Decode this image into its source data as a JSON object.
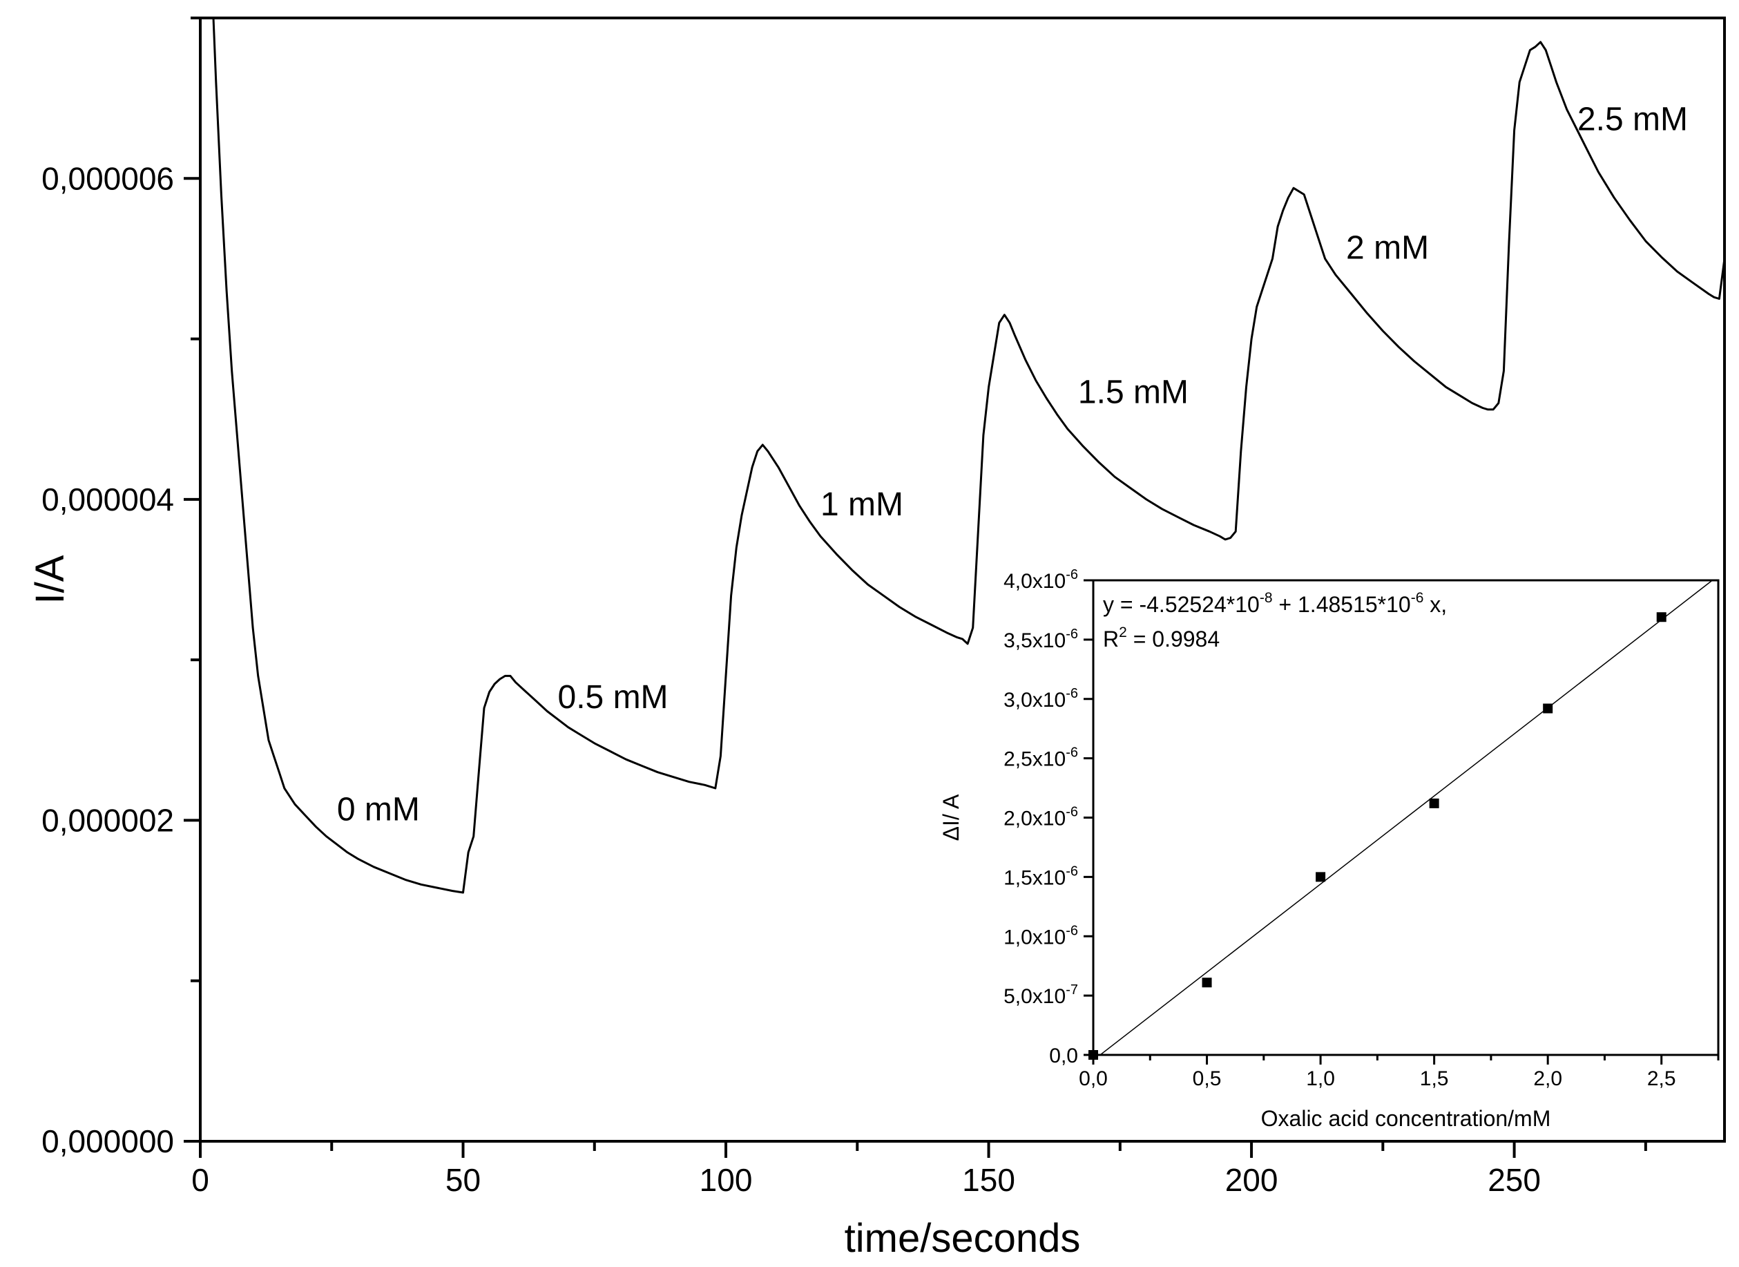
{
  "chart_data": [
    {
      "type": "line",
      "xlabel": "time/seconds",
      "ylabel": "I/A",
      "xlim": [
        0,
        290
      ],
      "ylim": [
        0,
        7e-06
      ],
      "x_ticks": [
        0,
        50,
        100,
        150,
        200,
        250
      ],
      "x_tick_labels": [
        "0",
        "50",
        "100",
        "150",
        "200",
        "250"
      ],
      "y_ticks": [
        0,
        2e-06,
        4e-06,
        6e-06
      ],
      "y_tick_labels": [
        "0,000000",
        "0,000002",
        "0,000004",
        "0,000006"
      ],
      "grid": false,
      "series": [
        {
          "x": [
            2.5,
            3,
            4,
            5,
            6,
            7,
            8,
            9,
            10,
            11,
            12,
            13,
            14,
            15,
            16,
            18,
            20,
            22,
            24,
            26,
            28,
            30,
            33,
            36,
            39,
            42,
            45,
            48,
            50,
            51,
            52,
            53,
            54,
            55,
            56,
            57,
            58,
            59,
            60,
            62,
            64,
            66,
            68,
            70,
            72,
            75,
            78,
            81,
            84,
            87,
            90,
            93,
            96,
            98,
            99,
            100,
            101,
            102,
            103,
            104,
            105,
            106,
            107,
            108,
            110,
            112,
            114,
            116,
            118,
            121,
            124,
            127,
            130,
            133,
            136,
            139,
            142,
            144,
            145,
            146,
            147,
            148,
            149,
            150,
            151,
            152,
            153,
            154,
            155,
            157,
            159,
            161,
            163,
            165,
            168,
            171,
            174,
            177,
            180,
            183,
            186,
            189,
            192,
            194,
            195,
            196,
            197,
            198,
            199,
            200,
            201,
            202,
            203,
            204,
            205,
            206,
            207,
            208,
            210,
            212,
            214,
            216,
            219,
            222,
            225,
            228,
            231,
            234,
            237,
            240,
            242,
            244,
            245,
            246,
            247,
            248,
            249,
            250,
            251,
            252,
            253,
            254,
            255,
            256,
            257,
            258,
            260,
            262,
            264,
            266,
            269,
            272,
            275,
            278,
            281,
            284,
            287,
            288,
            289,
            290
          ],
          "y": [
            7e-06,
            6.6e-06,
            5.9e-06,
            5.3e-06,
            4.8e-06,
            4.4e-06,
            4e-06,
            3.6e-06,
            3.2e-06,
            2.9e-06,
            2.7e-06,
            2.5e-06,
            2.4e-06,
            2.3e-06,
            2.2e-06,
            2.1e-06,
            2.03e-06,
            1.96e-06,
            1.9e-06,
            1.85e-06,
            1.8e-06,
            1.76e-06,
            1.71e-06,
            1.67e-06,
            1.63e-06,
            1.6e-06,
            1.58e-06,
            1.56e-06,
            1.55e-06,
            1.8e-06,
            1.9e-06,
            2.3e-06,
            2.7e-06,
            2.8e-06,
            2.85e-06,
            2.88e-06,
            2.9e-06,
            2.9e-06,
            2.86e-06,
            2.8e-06,
            2.74e-06,
            2.68e-06,
            2.63e-06,
            2.58e-06,
            2.54e-06,
            2.48e-06,
            2.43e-06,
            2.38e-06,
            2.34e-06,
            2.3e-06,
            2.27e-06,
            2.24e-06,
            2.22e-06,
            2.2e-06,
            2.4e-06,
            2.9e-06,
            3.4e-06,
            3.7e-06,
            3.9e-06,
            4.05e-06,
            4.2e-06,
            4.3e-06,
            4.34e-06,
            4.3e-06,
            4.2e-06,
            4.08e-06,
            3.96e-06,
            3.86e-06,
            3.77e-06,
            3.66e-06,
            3.56e-06,
            3.47e-06,
            3.4e-06,
            3.33e-06,
            3.27e-06,
            3.22e-06,
            3.17e-06,
            3.14e-06,
            3.13e-06,
            3.1e-06,
            3.2e-06,
            3.8e-06,
            4.4e-06,
            4.7e-06,
            4.9e-06,
            5.1e-06,
            5.15e-06,
            5.1e-06,
            5.02e-06,
            4.87e-06,
            4.74e-06,
            4.63e-06,
            4.53e-06,
            4.44e-06,
            4.33e-06,
            4.23e-06,
            4.14e-06,
            4.07e-06,
            4e-06,
            3.94e-06,
            3.89e-06,
            3.84e-06,
            3.8e-06,
            3.77e-06,
            3.75e-06,
            3.76e-06,
            3.8e-06,
            4.3e-06,
            4.7e-06,
            5e-06,
            5.2e-06,
            5.3e-06,
            5.4e-06,
            5.5e-06,
            5.7e-06,
            5.8e-06,
            5.88e-06,
            5.94e-06,
            5.9e-06,
            5.7e-06,
            5.5e-06,
            5.4e-06,
            5.28e-06,
            5.16e-06,
            5.05e-06,
            4.95e-06,
            4.86e-06,
            4.78e-06,
            4.7e-06,
            4.64e-06,
            4.6e-06,
            4.57e-06,
            4.56e-06,
            4.56e-06,
            4.6e-06,
            4.8e-06,
            5.6e-06,
            6.3e-06,
            6.6e-06,
            6.7e-06,
            6.8e-06,
            6.82e-06,
            6.85e-06,
            6.8e-06,
            6.7e-06,
            6.6e-06,
            6.43e-06,
            6.3e-06,
            6.17e-06,
            6.04e-06,
            5.88e-06,
            5.74e-06,
            5.61e-06,
            5.51e-06,
            5.42e-06,
            5.35e-06,
            5.28e-06,
            5.26e-06,
            5.25e-06,
            5.5e-06
          ]
        }
      ],
      "annotations": [
        "0 mM",
        "0.5 mM",
        "1 mM",
        "1.5 mM",
        "2 mM",
        "2.5 mM"
      ],
      "annotation_anchors": [
        {
          "label": "0 mM",
          "x": 26,
          "y": 2e-06
        },
        {
          "label": "0.5 mM",
          "x": 68,
          "y": 2.7e-06
        },
        {
          "label": "1 mM",
          "x": 118,
          "y": 3.9e-06
        },
        {
          "label": "1.5 mM",
          "x": 167,
          "y": 4.6e-06
        },
        {
          "label": "2 mM",
          "x": 218,
          "y": 5.5e-06
        },
        {
          "label": "2.5 mM",
          "x": 262,
          "y": 6.3e-06
        }
      ]
    },
    {
      "type": "scatter",
      "xlabel": "Oxalic acid concentration/mM",
      "ylabel": "ΔI/ A",
      "xlim": [
        0,
        2.75
      ],
      "ylim": [
        0,
        4e-06
      ],
      "x_ticks": [
        0,
        0.5,
        1.0,
        1.5,
        2.0,
        2.5
      ],
      "x_tick_labels": [
        "0,0",
        "0,5",
        "1,0",
        "1,5",
        "2,0",
        "2,5"
      ],
      "y_ticks": [
        0,
        5e-07,
        1e-06,
        1.5e-06,
        2e-06,
        2.5e-06,
        3e-06,
        3.5e-06,
        4e-06
      ],
      "y_tick_labels": [
        {
          "mantissa": "0,0",
          "exp": ""
        },
        {
          "mantissa": "5,0x10",
          "exp": "-7"
        },
        {
          "mantissa": "1,0x10",
          "exp": "-6"
        },
        {
          "mantissa": "1,5x10",
          "exp": "-6"
        },
        {
          "mantissa": "2,0x10",
          "exp": "-6"
        },
        {
          "mantissa": "2,5x10",
          "exp": "-6"
        },
        {
          "mantissa": "3,0x10",
          "exp": "-6"
        },
        {
          "mantissa": "3,5x10",
          "exp": "-6"
        },
        {
          "mantissa": "4,0x10",
          "exp": "-6"
        }
      ],
      "grid": false,
      "series": [
        {
          "x": [
            0,
            0.5,
            1.0,
            1.5,
            2.0,
            2.5
          ],
          "y": [
            0,
            6.1e-07,
            1.5e-06,
            2.12e-06,
            2.92e-06,
            3.69e-06
          ]
        }
      ],
      "fit": {
        "intercept": -4.52524e-08,
        "slope": 1.48515e-06,
        "equation_parts": {
          "prefix": "y = -4.52524*10",
          "exp1": "-8",
          "middle": " + 1.48515*10",
          "exp2": "-6",
          "suffix": " x,"
        },
        "r2_parts": {
          "prefix": "R",
          "exp": "2",
          "suffix": " = 0.9984"
        }
      }
    }
  ]
}
